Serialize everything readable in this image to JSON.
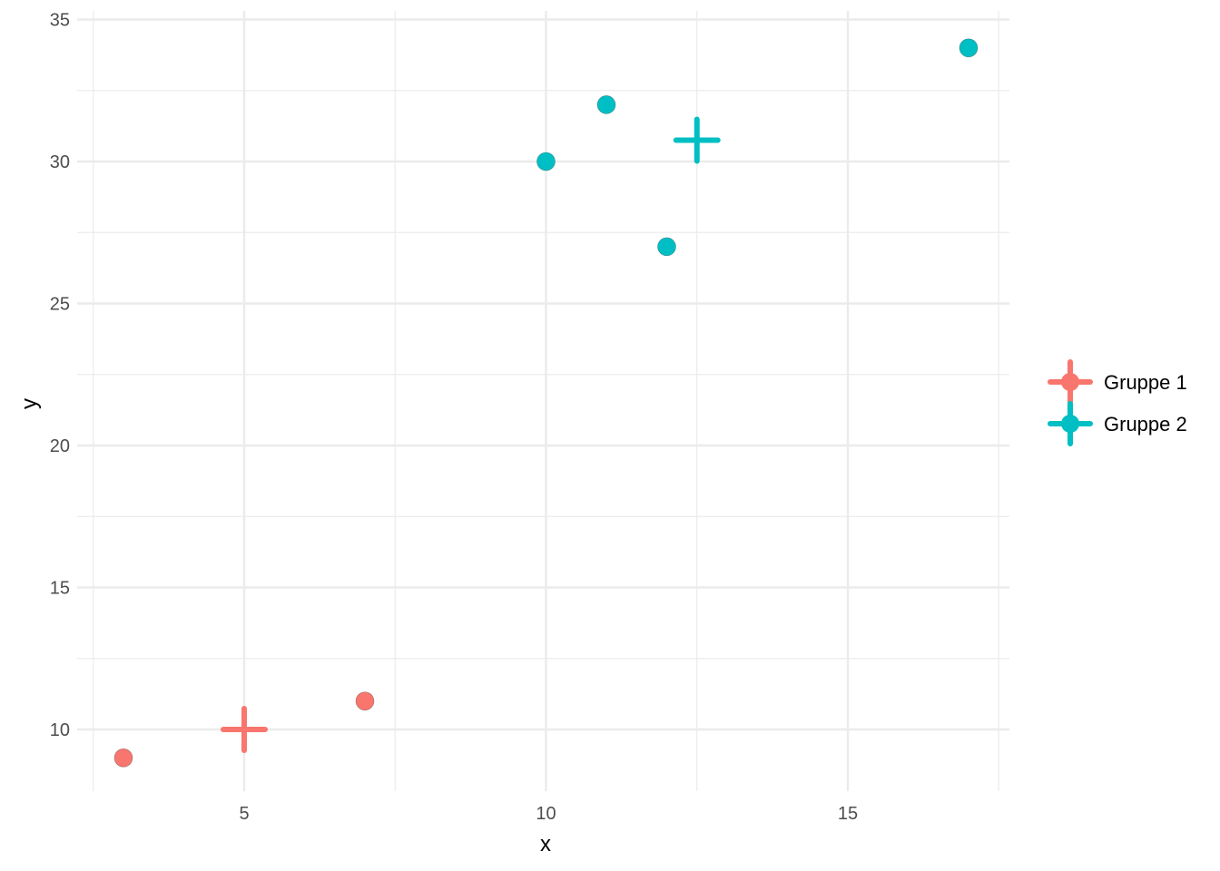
{
  "chart_data": {
    "type": "scatter",
    "title": "",
    "xlabel": "x",
    "ylabel": "y",
    "xlim": [
      2.5,
      17.5
    ],
    "ylim": [
      8,
      35
    ],
    "x_ticks": [
      5,
      10,
      15
    ],
    "y_ticks": [
      10,
      15,
      20,
      25,
      30,
      35
    ],
    "x_tick_labels": [
      "5",
      "10",
      "15"
    ],
    "y_tick_labels": [
      "10",
      "15",
      "20",
      "25",
      "30",
      "35"
    ],
    "grid": true,
    "legend_position": "right",
    "series": [
      {
        "name": "Gruppe 1",
        "color": "#F8766D",
        "points": [
          {
            "x": 3,
            "y": 9
          },
          {
            "x": 7,
            "y": 11
          }
        ],
        "centroid": {
          "x": 5,
          "y": 10
        }
      },
      {
        "name": "Gruppe 2",
        "color": "#00BFC4",
        "points": [
          {
            "x": 10,
            "y": 30
          },
          {
            "x": 11,
            "y": 32
          },
          {
            "x": 12,
            "y": 27
          },
          {
            "x": 17,
            "y": 34
          }
        ],
        "centroid": {
          "x": 12.5,
          "y": 30.75
        }
      }
    ]
  }
}
